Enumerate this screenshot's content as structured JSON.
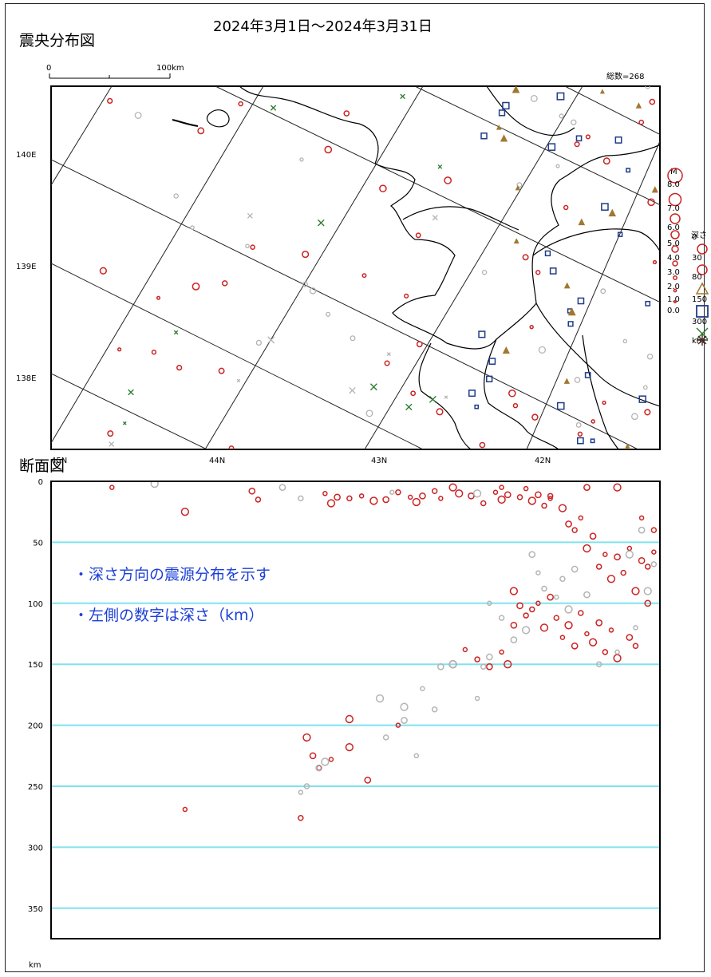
{
  "title": "2024年3月1日～2024年3月31日",
  "epicenter_map": {
    "heading": "震央分布図",
    "scale_bar": {
      "start_label": "0",
      "end_label": "100km"
    },
    "total_label": "総数=268",
    "lat_labels": [
      "140E",
      "139E",
      "138E"
    ],
    "lon_labels": [
      "45N",
      "44N",
      "43N",
      "42N"
    ]
  },
  "legend": {
    "magnitude_title": "M",
    "magnitude_labels": [
      "8.0",
      "7.0",
      "6.0",
      "5.0",
      "4.0",
      "3.0",
      "2.0",
      "1.0",
      "0.0"
    ],
    "depth_title": "深さ",
    "depth_labels": [
      "0",
      "30",
      "80",
      "150",
      "300",
      "km"
    ],
    "depth_symbols": [
      "circle",
      "circle",
      "triangle",
      "square",
      "cross",
      "asterisk"
    ],
    "depth_colors": [
      "#cc2222",
      "#cc2222",
      "#a07830",
      "#1f3c88",
      "#2e7d32",
      "#4a2a2a"
    ]
  },
  "cross_section": {
    "heading": "断面図",
    "depth_ticks": [
      0,
      50,
      100,
      150,
      200,
      250,
      300,
      350
    ],
    "depth_unit": "km",
    "notes": [
      "・深さ方向の震源分布を示す",
      "・左側の数字は深さ（km）"
    ]
  },
  "colors": {
    "shallow": "#cc2222",
    "grey": "#b4b4b4",
    "intermediate": "#a07830",
    "deep": "#1f3c88",
    "very_deep": "#2e7d32",
    "gridline": "#7fe3ee",
    "note": "#1a3fd6"
  },
  "chart_data": {
    "type": "scatter",
    "title": "2024年3月1日～2024年3月31日",
    "xlabel": "",
    "ylabel": "km",
    "ylim": [
      0,
      375
    ],
    "total_events": 268,
    "grid": true,
    "series": [
      {
        "name": "断面図",
        "color": "#cc2222",
        "note": "horizontal position = relative distance along section (0 = left edge, 1 = right edge)",
        "points": [
          [
            0.1,
            5
          ],
          [
            0.22,
            25
          ],
          [
            0.33,
            8
          ],
          [
            0.34,
            15
          ],
          [
            0.45,
            10
          ],
          [
            0.46,
            18
          ],
          [
            0.47,
            13
          ],
          [
            0.49,
            14
          ],
          [
            0.51,
            12
          ],
          [
            0.53,
            16
          ],
          [
            0.55,
            15
          ],
          [
            0.57,
            9
          ],
          [
            0.59,
            13
          ],
          [
            0.6,
            17
          ],
          [
            0.61,
            12
          ],
          [
            0.63,
            8
          ],
          [
            0.64,
            14
          ],
          [
            0.67,
            10
          ],
          [
            0.69,
            12
          ],
          [
            0.71,
            18
          ],
          [
            0.73,
            9
          ],
          [
            0.74,
            15
          ],
          [
            0.75,
            11
          ],
          [
            0.77,
            13
          ],
          [
            0.78,
            6
          ],
          [
            0.79,
            16
          ],
          [
            0.8,
            11
          ],
          [
            0.81,
            20
          ],
          [
            0.82,
            14
          ],
          [
            0.84,
            22
          ],
          [
            0.85,
            35
          ],
          [
            0.86,
            40
          ],
          [
            0.87,
            30
          ],
          [
            0.88,
            55
          ],
          [
            0.89,
            45
          ],
          [
            0.9,
            70
          ],
          [
            0.91,
            60
          ],
          [
            0.92,
            80
          ],
          [
            0.93,
            62
          ],
          [
            0.94,
            75
          ],
          [
            0.95,
            55
          ],
          [
            0.96,
            90
          ],
          [
            0.97,
            65
          ],
          [
            0.98,
            70
          ],
          [
            0.99,
            58
          ],
          [
            0.76,
            90
          ],
          [
            0.77,
            102
          ],
          [
            0.78,
            110
          ],
          [
            0.8,
            100
          ],
          [
            0.81,
            120
          ],
          [
            0.82,
            95
          ],
          [
            0.83,
            112
          ],
          [
            0.84,
            128
          ],
          [
            0.85,
            118
          ],
          [
            0.86,
            135
          ],
          [
            0.87,
            108
          ],
          [
            0.88,
            125
          ],
          [
            0.89,
            132
          ],
          [
            0.9,
            116
          ],
          [
            0.91,
            140
          ],
          [
            0.92,
            122
          ],
          [
            0.93,
            145
          ],
          [
            0.95,
            128
          ],
          [
            0.96,
            135
          ],
          [
            0.74,
            140
          ],
          [
            0.75,
            150
          ],
          [
            0.72,
            152
          ],
          [
            0.7,
            146
          ],
          [
            0.68,
            138
          ],
          [
            0.66,
            150
          ],
          [
            0.76,
            118
          ],
          [
            0.79,
            105
          ],
          [
            0.57,
            200
          ],
          [
            0.42,
            210
          ],
          [
            0.43,
            225
          ],
          [
            0.44,
            235
          ],
          [
            0.46,
            228
          ],
          [
            0.49,
            218
          ],
          [
            0.52,
            245
          ],
          [
            0.41,
            276
          ],
          [
            0.22,
            269
          ],
          [
            0.49,
            195
          ],
          [
            0.98,
            100
          ],
          [
            0.99,
            40
          ],
          [
            0.97,
            30
          ],
          [
            0.93,
            5
          ],
          [
            0.88,
            5
          ],
          [
            0.82,
            12
          ],
          [
            0.74,
            5
          ],
          [
            0.66,
            5
          ]
        ]
      },
      {
        "name": "",
        "color": "#b4b4b4",
        "points": [
          [
            0.17,
            2
          ],
          [
            0.38,
            5
          ],
          [
            0.41,
            14
          ],
          [
            0.56,
            9
          ],
          [
            0.7,
            10
          ],
          [
            0.79,
            60
          ],
          [
            0.81,
            88
          ],
          [
            0.83,
            95
          ],
          [
            0.85,
            105
          ],
          [
            0.88,
            93
          ],
          [
            0.9,
            150
          ],
          [
            0.93,
            140
          ],
          [
            0.95,
            60
          ],
          [
            0.97,
            40
          ],
          [
            0.99,
            68
          ],
          [
            0.96,
            120
          ],
          [
            0.98,
            90
          ],
          [
            0.72,
            144
          ],
          [
            0.71,
            152
          ],
          [
            0.7,
            178
          ],
          [
            0.66,
            150
          ],
          [
            0.64,
            152
          ],
          [
            0.63,
            187
          ],
          [
            0.61,
            170
          ],
          [
            0.58,
            185
          ],
          [
            0.58,
            196
          ],
          [
            0.55,
            210
          ],
          [
            0.6,
            225
          ],
          [
            0.45,
            230
          ],
          [
            0.44,
            235
          ],
          [
            0.42,
            250
          ],
          [
            0.41,
            255
          ],
          [
            0.54,
            178
          ],
          [
            0.86,
            72
          ],
          [
            0.84,
            80
          ],
          [
            0.8,
            75
          ],
          [
            0.78,
            122
          ],
          [
            0.76,
            130
          ],
          [
            0.74,
            112
          ],
          [
            0.72,
            100
          ]
        ]
      }
    ]
  }
}
